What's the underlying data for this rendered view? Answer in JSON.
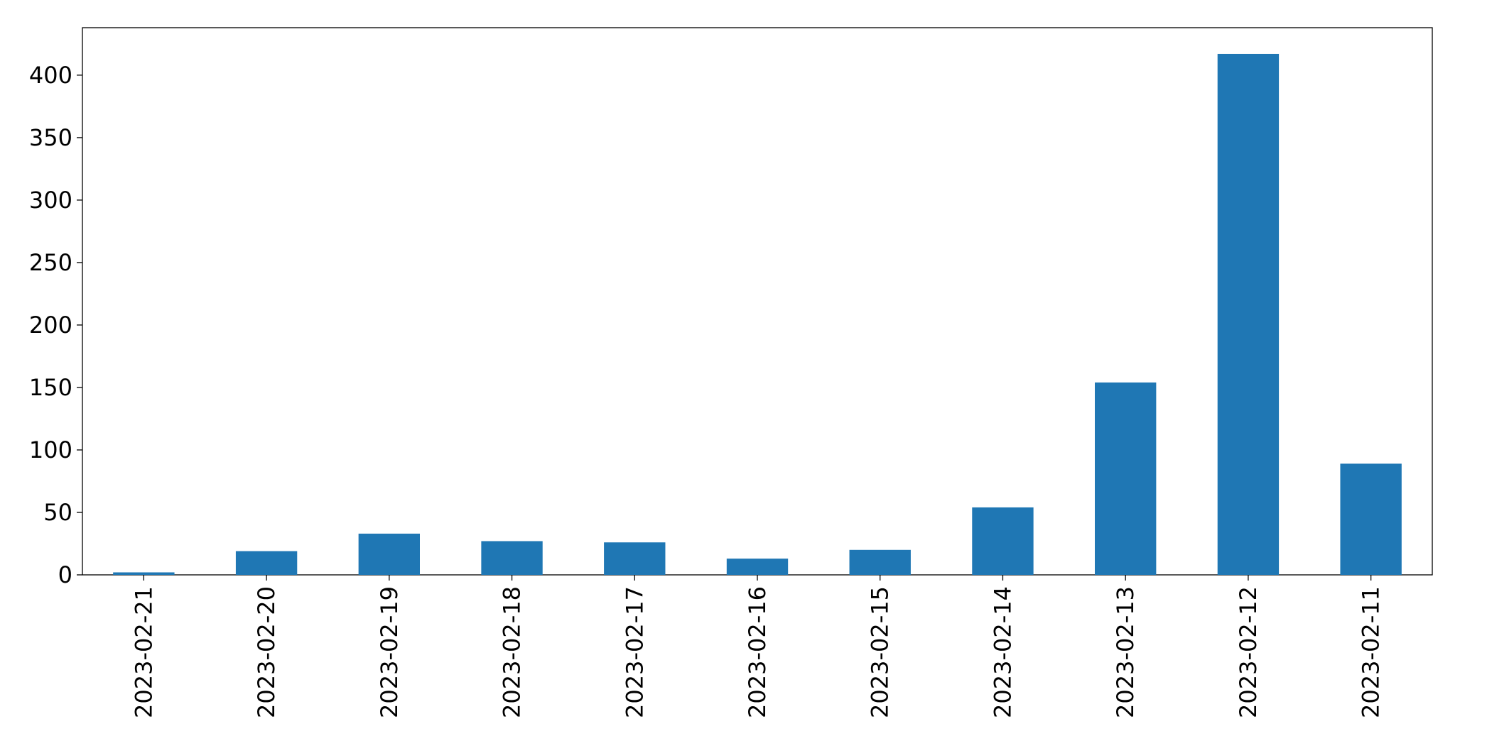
{
  "chart_data": {
    "type": "bar",
    "categories": [
      "2023-02-21",
      "2023-02-20",
      "2023-02-19",
      "2023-02-18",
      "2023-02-17",
      "2023-02-16",
      "2023-02-15",
      "2023-02-14",
      "2023-02-13",
      "2023-02-12",
      "2023-02-11"
    ],
    "values": [
      2,
      19,
      33,
      27,
      26,
      13,
      20,
      54,
      154,
      417,
      89
    ],
    "color": "#1f77b4",
    "ylim": [
      0,
      438
    ],
    "yticks": [
      0,
      50,
      100,
      150,
      200,
      250,
      300,
      350,
      400
    ],
    "grid": false
  }
}
